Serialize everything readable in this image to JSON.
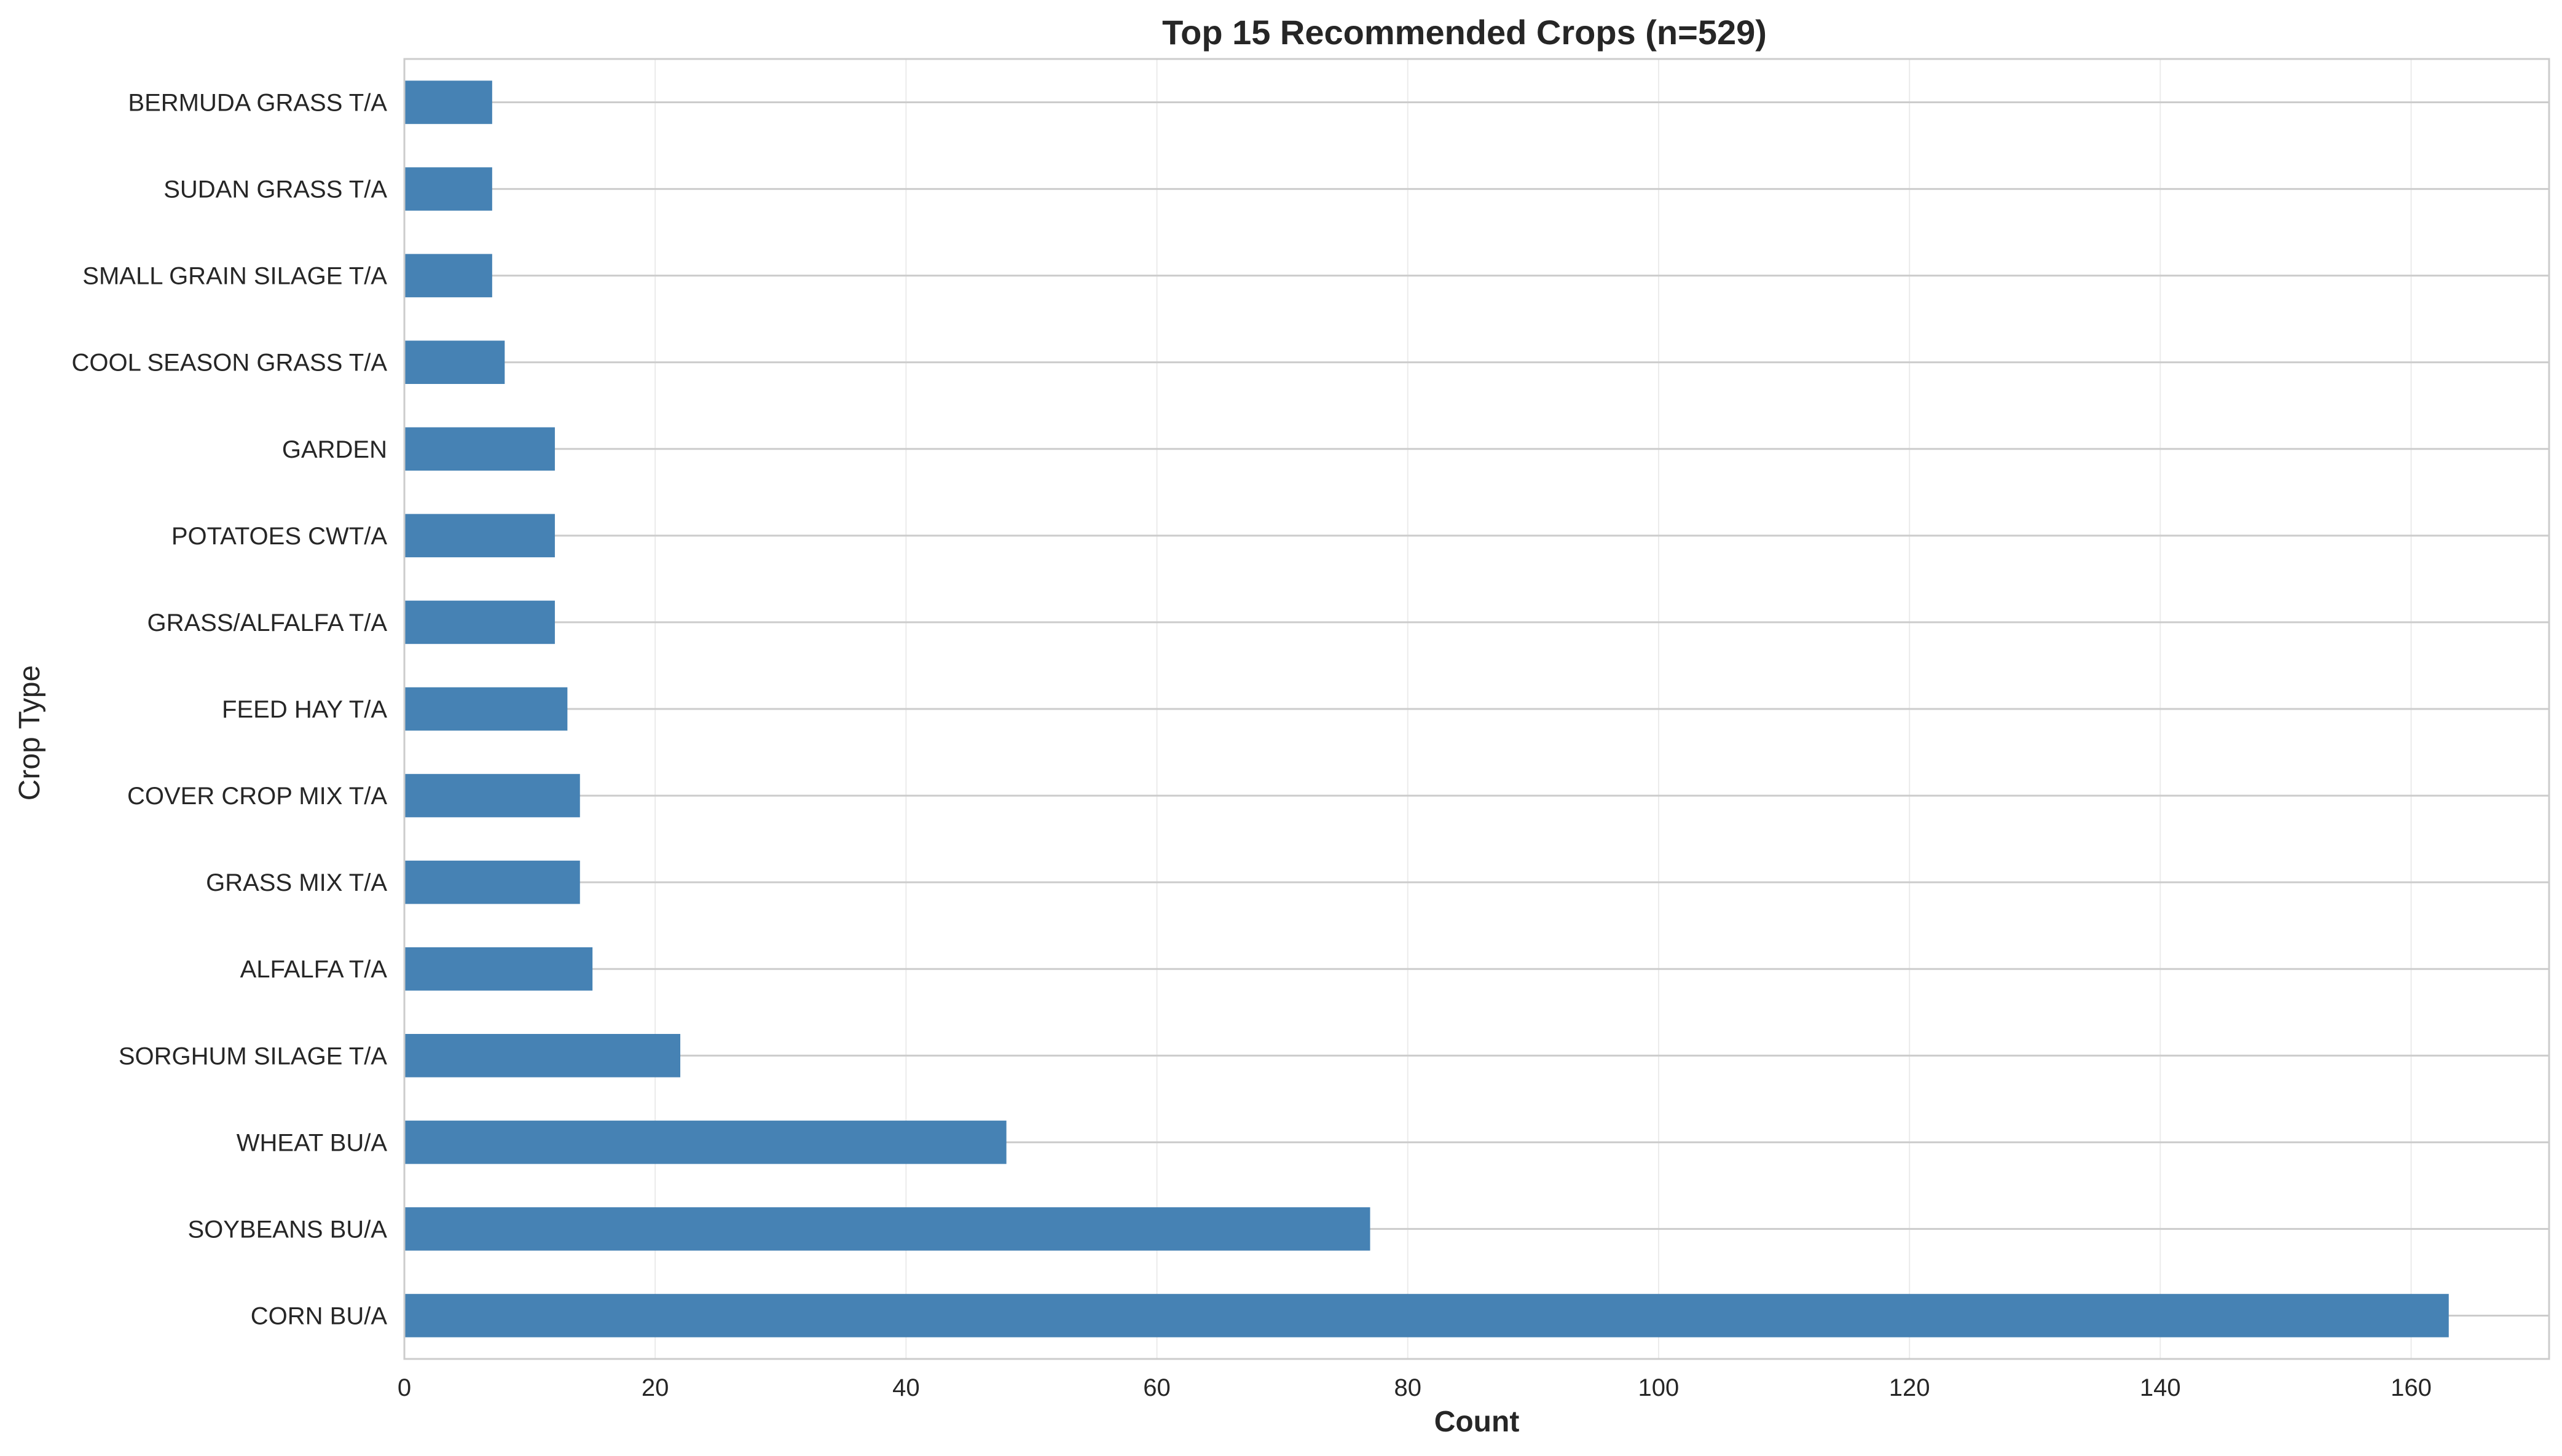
{
  "chart_data": {
    "type": "bar",
    "orientation": "horizontal",
    "title": "Top 15 Recommended Crops (n=529)",
    "xlabel": "Count",
    "ylabel": "Crop Type",
    "xlim": [
      0,
      171
    ],
    "xticks": [
      0,
      20,
      40,
      60,
      80,
      100,
      120,
      140,
      160
    ],
    "grid": true,
    "bar_color": "#4682b4",
    "categories": [
      "CORN BU/A",
      "SOYBEANS BU/A",
      "WHEAT BU/A",
      "SORGHUM SILAGE T/A",
      "ALFALFA T/A",
      "GRASS MIX T/A",
      "COVER CROP MIX T/A",
      "FEED HAY T/A",
      "GRASS/ALFALFA T/A",
      "POTATOES CWT/A",
      "GARDEN",
      "COOL SEASON GRASS T/A",
      "SMALL GRAIN SILAGE T/A",
      "SUDAN GRASS T/A",
      "BERMUDA GRASS T/A"
    ],
    "values": [
      163,
      77,
      48,
      22,
      15,
      14,
      14,
      13,
      12,
      12,
      12,
      8,
      7,
      7,
      7
    ]
  }
}
